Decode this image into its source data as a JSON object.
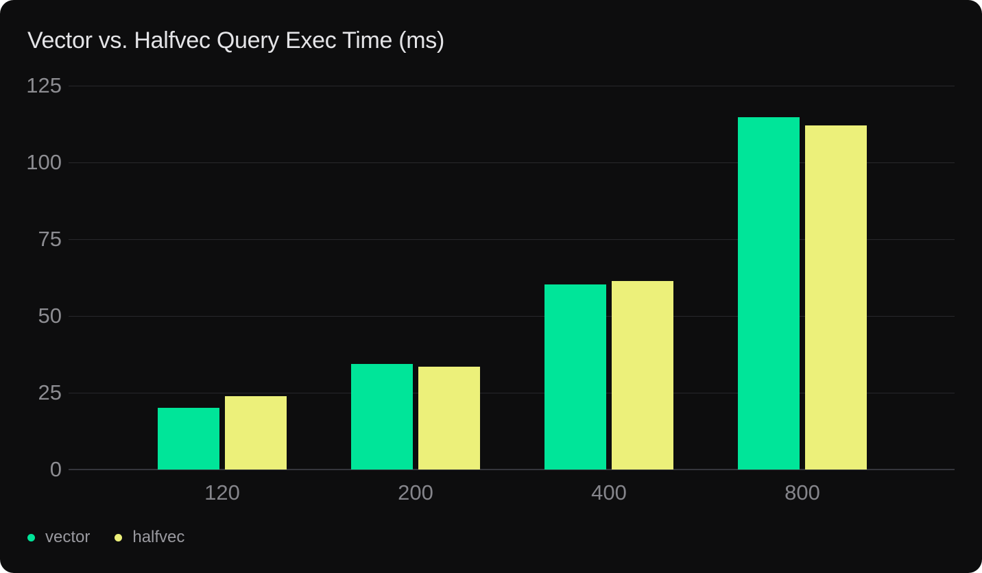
{
  "chart_data": {
    "type": "bar",
    "title": "Vector vs. Halfvec Query Exec Time (ms)",
    "xlabel": "",
    "ylabel": "",
    "categories": [
      "120",
      "200",
      "400",
      "800"
    ],
    "series": [
      {
        "name": "vector",
        "color": "#00E599",
        "values": [
          20.0,
          34.3,
          60.2,
          114.8
        ]
      },
      {
        "name": "halfvec",
        "color": "#ECF07A",
        "values": [
          23.8,
          33.4,
          61.3,
          112.1
        ]
      }
    ],
    "ylim": [
      0,
      125
    ],
    "y_ticks": [
      0,
      25,
      50,
      75,
      100,
      125
    ],
    "grid": true,
    "legend_position": "bottom-left"
  },
  "legend": {
    "items": [
      {
        "label": "vector",
        "color": "#00E599"
      },
      {
        "label": "halfvec",
        "color": "#ECF07A"
      }
    ]
  },
  "colors": {
    "page_background": "#FFFFFF",
    "card_background": "#0D0D0E",
    "gridline": "#28282C",
    "zero_axis_line": "#35363C",
    "title_text": "#E4E4E7",
    "y_tick_text": "#8D8D92",
    "x_tick_text": "#85858B",
    "legend_text": "#9A9AA0",
    "vector_bar": "#00E599",
    "halfvec_bar": "#ECF07A"
  }
}
